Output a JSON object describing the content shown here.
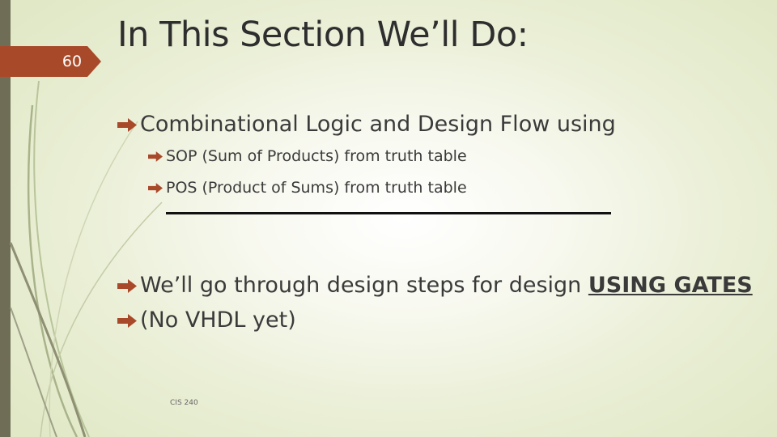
{
  "slide": {
    "number": "60",
    "title": "In This Section We’ll Do:",
    "footer": "CIS 240",
    "accent_color": "#a84a2a",
    "sidebar_color": "#6f6d56"
  },
  "bullets": [
    {
      "level": 1,
      "text": "Combinational Logic and Design Flow using",
      "icon": "arrow-right-icon"
    },
    {
      "level": 2,
      "text": "SOP (Sum of Products) from truth table",
      "icon": "arrow-right-icon"
    },
    {
      "level": 2,
      "text": "POS (Product of Sums) from truth table",
      "icon": "arrow-right-icon"
    },
    {
      "level": 1,
      "text": "We’ll go through design steps for design ",
      "emphasis": "USING GATES",
      "icon": "arrow-right-icon"
    },
    {
      "level": 1,
      "text": "(No VHDL yet)",
      "icon": "arrow-right-icon"
    }
  ]
}
